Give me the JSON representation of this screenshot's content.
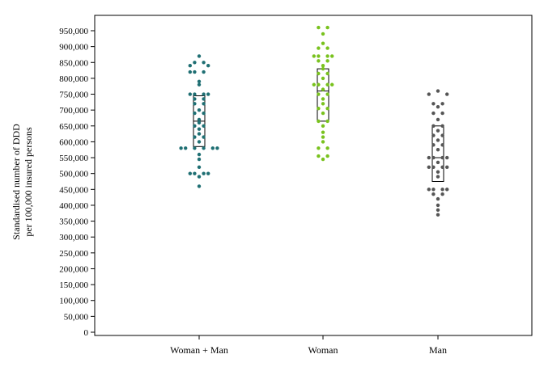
{
  "chart_data": {
    "type": "scatter",
    "subtype": "dot-strip-with-boxplot",
    "title": "",
    "xlabel": "",
    "ylabel_lines": [
      "Standardised number of DDD",
      "per 100,000 insured persons"
    ],
    "ylim": [
      0,
      960000
    ],
    "yticks": [
      0,
      50000,
      100000,
      150000,
      200000,
      250000,
      300000,
      350000,
      400000,
      450000,
      500000,
      550000,
      600000,
      650000,
      700000,
      750000,
      800000,
      850000,
      900000,
      950000
    ],
    "ytick_labels": [
      "0",
      "50,000",
      "100,000",
      "150,000",
      "200,000",
      "250,000",
      "300,000",
      "350,000",
      "400,000",
      "450,000",
      "500,000",
      "550,000",
      "600,000",
      "650,000",
      "700,000",
      "750,000",
      "800,000",
      "850,000",
      "900,000",
      "950,000"
    ],
    "categories": [
      "Woman + Man",
      "Woman",
      "Man"
    ],
    "grid": false,
    "legend": "none",
    "series": [
      {
        "category": "Woman + Man",
        "color": "#1f6f73",
        "box": {
          "q1": 585000,
          "median": 665000,
          "q3": 745000
        },
        "points": [
          [
            0,
            870000
          ],
          [
            -1,
            850000
          ],
          [
            1,
            850000
          ],
          [
            -2,
            840000
          ],
          [
            2,
            840000
          ],
          [
            -1,
            820000
          ],
          [
            1,
            820000
          ],
          [
            -2,
            820000
          ],
          [
            0,
            790000
          ],
          [
            0,
            780000
          ],
          [
            -1,
            750000
          ],
          [
            1,
            750000
          ],
          [
            -2,
            750000
          ],
          [
            2,
            750000
          ],
          [
            -1,
            735000
          ],
          [
            1,
            735000
          ],
          [
            -1,
            720000
          ],
          [
            1,
            720000
          ],
          [
            0,
            700000
          ],
          [
            -1,
            690000
          ],
          [
            1,
            690000
          ],
          [
            0,
            670000
          ],
          [
            0,
            660000
          ],
          [
            -1,
            650000
          ],
          [
            1,
            650000
          ],
          [
            0,
            640000
          ],
          [
            0,
            625000
          ],
          [
            -1,
            615000
          ],
          [
            1,
            615000
          ],
          [
            0,
            600000
          ],
          [
            -4,
            580000
          ],
          [
            -3,
            580000
          ],
          [
            -1,
            580000
          ],
          [
            1,
            580000
          ],
          [
            3,
            580000
          ],
          [
            4,
            580000
          ],
          [
            0,
            560000
          ],
          [
            0,
            545000
          ],
          [
            0,
            520000
          ],
          [
            -2,
            500000
          ],
          [
            -1,
            500000
          ],
          [
            1,
            500000
          ],
          [
            2,
            500000
          ],
          [
            0,
            490000
          ],
          [
            0,
            460000
          ]
        ]
      },
      {
        "category": "Woman",
        "color": "#79c21e",
        "box": {
          "q1": 665000,
          "median": 760000,
          "q3": 830000
        },
        "points": [
          [
            -1,
            960000
          ],
          [
            1,
            960000
          ],
          [
            0,
            940000
          ],
          [
            0,
            910000
          ],
          [
            -1,
            895000
          ],
          [
            1,
            895000
          ],
          [
            -2,
            870000
          ],
          [
            -1,
            870000
          ],
          [
            1,
            870000
          ],
          [
            2,
            870000
          ],
          [
            -1,
            855000
          ],
          [
            1,
            855000
          ],
          [
            0,
            840000
          ],
          [
            0,
            830000
          ],
          [
            -1,
            815000
          ],
          [
            1,
            815000
          ],
          [
            0,
            800000
          ],
          [
            -2,
            780000
          ],
          [
            -1,
            780000
          ],
          [
            1,
            780000
          ],
          [
            2,
            780000
          ],
          [
            0,
            765000
          ],
          [
            -1,
            750000
          ],
          [
            1,
            750000
          ],
          [
            0,
            735000
          ],
          [
            0,
            720000
          ],
          [
            -1,
            705000
          ],
          [
            1,
            705000
          ],
          [
            0,
            690000
          ],
          [
            -1,
            665000
          ],
          [
            1,
            665000
          ],
          [
            0,
            650000
          ],
          [
            0,
            630000
          ],
          [
            0,
            615000
          ],
          [
            0,
            600000
          ],
          [
            -1,
            580000
          ],
          [
            1,
            580000
          ],
          [
            -1,
            555000
          ],
          [
            1,
            555000
          ],
          [
            0,
            545000
          ]
        ]
      },
      {
        "category": "Man",
        "color": "#555555",
        "box": {
          "q1": 475000,
          "median": 550000,
          "q3": 650000
        },
        "points": [
          [
            -2,
            750000
          ],
          [
            0,
            760000
          ],
          [
            2,
            750000
          ],
          [
            -1,
            720000
          ],
          [
            1,
            720000
          ],
          [
            0,
            710000
          ],
          [
            -1,
            690000
          ],
          [
            1,
            690000
          ],
          [
            0,
            670000
          ],
          [
            -1,
            650000
          ],
          [
            1,
            650000
          ],
          [
            0,
            635000
          ],
          [
            -1,
            620000
          ],
          [
            1,
            620000
          ],
          [
            0,
            605000
          ],
          [
            -1,
            590000
          ],
          [
            1,
            590000
          ],
          [
            0,
            575000
          ],
          [
            -2,
            550000
          ],
          [
            -1,
            550000
          ],
          [
            1,
            550000
          ],
          [
            2,
            550000
          ],
          [
            0,
            535000
          ],
          [
            -2,
            520000
          ],
          [
            -1,
            520000
          ],
          [
            1,
            520000
          ],
          [
            2,
            520000
          ],
          [
            0,
            505000
          ],
          [
            0,
            490000
          ],
          [
            -2,
            450000
          ],
          [
            -1,
            450000
          ],
          [
            1,
            450000
          ],
          [
            2,
            450000
          ],
          [
            -1,
            435000
          ],
          [
            1,
            435000
          ],
          [
            0,
            420000
          ],
          [
            0,
            400000
          ],
          [
            0,
            385000
          ],
          [
            0,
            370000
          ]
        ]
      }
    ]
  }
}
